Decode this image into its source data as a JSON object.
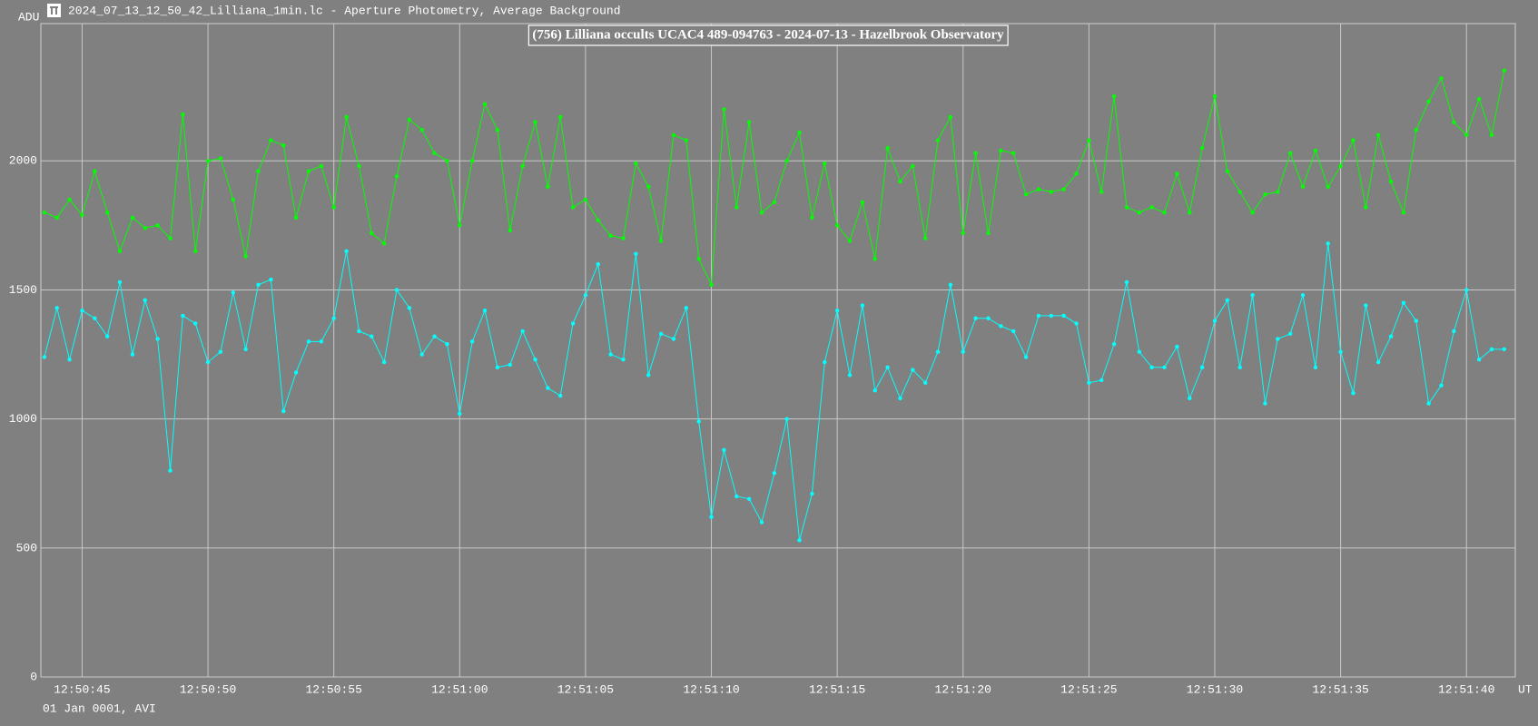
{
  "window_title": "2024_07_13_12_50_42_Lilliana_1min.lc - Aperture Photometry, Average Background",
  "chart_data": {
    "type": "line",
    "title": "(756) Lilliana occults UCAC4 489-094763 - 2024-07-13 - Hazelbrook Observatory",
    "y_label": "ADU",
    "x_label": "UT",
    "footer": "01 Jan 0001, AVI",
    "grid": true,
    "markers": true,
    "xlim": [
      43.36,
      101.94
    ],
    "ylim": [
      0,
      2532
    ],
    "yticks": [
      0,
      500,
      1000,
      1500,
      2000
    ],
    "xticks": [
      {
        "value": 45,
        "label": "12:50:45"
      },
      {
        "value": 50,
        "label": "12:50:50"
      },
      {
        "value": 55,
        "label": "12:50:55"
      },
      {
        "value": 60,
        "label": "12:51:00"
      },
      {
        "value": 65,
        "label": "12:51:05"
      },
      {
        "value": 70,
        "label": "12:51:10"
      },
      {
        "value": 75,
        "label": "12:51:15"
      },
      {
        "value": 80,
        "label": "12:51:20"
      },
      {
        "value": 85,
        "label": "12:51:25"
      },
      {
        "value": 90,
        "label": "12:51:30"
      },
      {
        "value": 95,
        "label": "12:51:35"
      },
      {
        "value": 100,
        "label": "12:51:40"
      }
    ],
    "x": [
      43.5,
      44,
      44.5,
      45,
      45.5,
      46,
      46.5,
      47,
      47.5,
      48,
      48.5,
      49,
      49.5,
      50,
      50.5,
      51,
      51.5,
      52,
      52.5,
      53,
      53.5,
      54,
      54.5,
      55,
      55.5,
      56,
      56.5,
      57,
      57.5,
      58,
      58.5,
      59,
      59.5,
      60,
      60.5,
      61,
      61.5,
      62,
      62.5,
      63,
      63.5,
      64,
      64.5,
      65,
      65.5,
      66,
      66.5,
      67,
      67.5,
      68,
      68.5,
      69,
      69.5,
      70,
      70.5,
      71,
      71.5,
      72,
      72.5,
      73,
      73.5,
      74,
      74.5,
      75,
      75.5,
      76,
      76.5,
      77,
      77.5,
      78,
      78.5,
      79,
      79.5,
      80,
      80.5,
      81,
      81.5,
      82,
      82.5,
      83,
      83.5,
      84,
      84.5,
      85,
      85.5,
      86,
      86.5,
      87,
      87.5,
      88,
      88.5,
      89,
      89.5,
      90,
      90.5,
      91,
      91.5,
      92,
      92.5,
      93,
      93.5,
      94,
      94.5,
      95,
      95.5,
      96,
      96.5,
      97,
      97.5,
      98,
      98.5,
      99,
      99.5,
      100,
      100.5,
      101,
      101.5
    ],
    "series": [
      {
        "color": "#00ff00",
        "values": [
          1800,
          1780,
          1850,
          1790,
          1960,
          1800,
          1650,
          1780,
          1740,
          1750,
          1700,
          2180,
          1650,
          2000,
          2010,
          1850,
          1630,
          1960,
          2080,
          2060,
          1780,
          1960,
          1980,
          1820,
          2170,
          1980,
          1720,
          1680,
          1940,
          2160,
          2120,
          2030,
          2000,
          1750,
          2000,
          2220,
          2120,
          1730,
          1980,
          2150,
          1900,
          2170,
          1820,
          1850,
          1770,
          1710,
          1700,
          1990,
          1900,
          1690,
          2100,
          2080,
          1620,
          1520,
          2200,
          1820,
          2150,
          1800,
          1840,
          2000,
          2110,
          1780,
          1990,
          1750,
          1690,
          1840,
          1620,
          2050,
          1920,
          1980,
          1700,
          2080,
          2170,
          1720,
          2030,
          1720,
          2040,
          2030,
          1870,
          1890,
          1880,
          1890,
          1950,
          2080,
          1880,
          2250,
          1820,
          1800,
          1820,
          1800,
          1950,
          1800,
          2050,
          2250,
          1960,
          1880,
          1800,
          1870,
          1880,
          2030,
          1900,
          2040,
          1900,
          1980,
          2080,
          1820,
          2100,
          1920,
          1800,
          2120,
          2230,
          2320,
          2150,
          2100,
          2240,
          2100,
          2350
        ]
      },
      {
        "color": "#00ffff",
        "values": [
          1240,
          1430,
          1230,
          1420,
          1390,
          1320,
          1530,
          1250,
          1460,
          1310,
          800,
          1400,
          1370,
          1220,
          1260,
          1490,
          1270,
          1520,
          1540,
          1030,
          1180,
          1300,
          1300,
          1390,
          1650,
          1340,
          1320,
          1220,
          1500,
          1430,
          1250,
          1320,
          1290,
          1020,
          1300,
          1420,
          1200,
          1210,
          1340,
          1230,
          1120,
          1090,
          1370,
          1480,
          1600,
          1250,
          1230,
          1640,
          1170,
          1330,
          1310,
          1430,
          990,
          620,
          880,
          700,
          690,
          600,
          790,
          1000,
          530,
          710,
          1220,
          1420,
          1170,
          1440,
          1110,
          1200,
          1080,
          1190,
          1140,
          1260,
          1520,
          1260,
          1390,
          1390,
          1360,
          1340,
          1240,
          1400,
          1400,
          1400,
          1370,
          1140,
          1150,
          1290,
          1530,
          1260,
          1200,
          1200,
          1280,
          1080,
          1200,
          1380,
          1460,
          1200,
          1480,
          1060,
          1310,
          1330,
          1480,
          1200,
          1680,
          1260,
          1100,
          1440,
          1220,
          1320,
          1450,
          1380,
          1060,
          1130,
          1340,
          1500,
          1230,
          1270,
          1270
        ]
      }
    ]
  }
}
